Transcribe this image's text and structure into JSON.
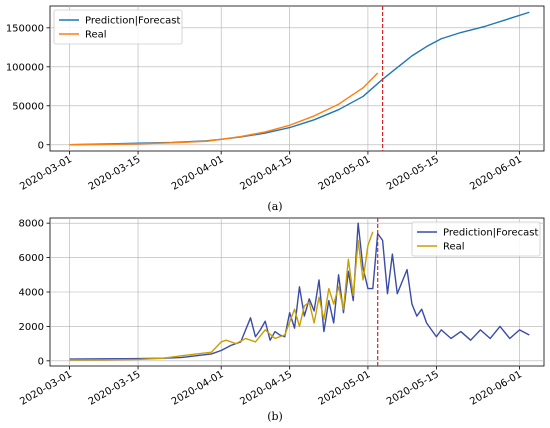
{
  "chart_data": [
    {
      "panel_label": "(a)",
      "type": "line",
      "title": "",
      "xlabel": "",
      "ylabel": "",
      "x_ticks": [
        "2020-03-01",
        "2020-03-15",
        "2020-04-01",
        "2020-04-15",
        "2020-05-01",
        "2020-05-15",
        "2020-06-01"
      ],
      "y_ticks": [
        "0",
        "50000",
        "100000",
        "150000"
      ],
      "ylim": [
        -8000,
        178000
      ],
      "xlim": [
        "2020-02-26",
        "2020-06-06"
      ],
      "grid": true,
      "legend": "top-left",
      "vline": {
        "x": "2020-05-04",
        "color": "#d62728"
      },
      "series": [
        {
          "name": "Prediction|Forecast",
          "color": "#1f77b4",
          "x": [
            "2020-03-01",
            "2020-03-08",
            "2020-03-15",
            "2020-03-22",
            "2020-03-29",
            "2020-04-01",
            "2020-04-05",
            "2020-04-10",
            "2020-04-15",
            "2020-04-20",
            "2020-04-25",
            "2020-04-30",
            "2020-05-04",
            "2020-05-06",
            "2020-05-08",
            "2020-05-10",
            "2020-05-13",
            "2020-05-16",
            "2020-05-20",
            "2020-05-25",
            "2020-05-30",
            "2020-06-03"
          ],
          "values": [
            0,
            1000,
            2000,
            3000,
            5000,
            7000,
            10000,
            15000,
            22000,
            32000,
            45000,
            62000,
            84000,
            94000,
            104000,
            114000,
            126000,
            136000,
            144000,
            152000,
            162000,
            170000
          ]
        },
        {
          "name": "Real",
          "color": "#ff7f0e",
          "x": [
            "2020-03-01",
            "2020-03-08",
            "2020-03-15",
            "2020-03-22",
            "2020-03-29",
            "2020-04-01",
            "2020-04-05",
            "2020-04-10",
            "2020-04-15",
            "2020-04-20",
            "2020-04-25",
            "2020-04-30",
            "2020-05-03"
          ],
          "values": [
            0,
            500,
            1200,
            2500,
            4500,
            7000,
            10500,
            16500,
            25000,
            37000,
            52000,
            73000,
            92000
          ]
        }
      ]
    },
    {
      "panel_label": "(b)",
      "type": "line",
      "title": "",
      "xlabel": "",
      "ylabel": "",
      "x_ticks": [
        "2020-03-01",
        "2020-03-15",
        "2020-04-01",
        "2020-04-15",
        "2020-05-01",
        "2020-05-15",
        "2020-06-01"
      ],
      "y_ticks": [
        "0",
        "2000",
        "4000",
        "6000",
        "8000"
      ],
      "ylim": [
        -300,
        8300
      ],
      "xlim": [
        "2020-02-26",
        "2020-06-06"
      ],
      "grid": true,
      "legend": "top-right",
      "vline": {
        "x": "2020-05-03",
        "color": "#d62728"
      },
      "series": [
        {
          "name": "Prediction|Forecast",
          "color": "#3b4ba8",
          "x": [
            "2020-03-01",
            "2020-03-08",
            "2020-03-15",
            "2020-03-20",
            "2020-03-24",
            "2020-03-27",
            "2020-03-30",
            "2020-04-01",
            "2020-04-03",
            "2020-04-05",
            "2020-04-07",
            "2020-04-08",
            "2020-04-09",
            "2020-04-10",
            "2020-04-11",
            "2020-04-12",
            "2020-04-13",
            "2020-04-14",
            "2020-04-15",
            "2020-04-16",
            "2020-04-17",
            "2020-04-18",
            "2020-04-19",
            "2020-04-20",
            "2020-04-21",
            "2020-04-22",
            "2020-04-23",
            "2020-04-24",
            "2020-04-25",
            "2020-04-26",
            "2020-04-27",
            "2020-04-28",
            "2020-04-29",
            "2020-04-30",
            "2020-05-01",
            "2020-05-02",
            "2020-05-03",
            "2020-05-04",
            "2020-05-05",
            "2020-05-06",
            "2020-05-07",
            "2020-05-08",
            "2020-05-09",
            "2020-05-10",
            "2020-05-11",
            "2020-05-12",
            "2020-05-13",
            "2020-05-14",
            "2020-05-15",
            "2020-05-16",
            "2020-05-18",
            "2020-05-20",
            "2020-05-22",
            "2020-05-24",
            "2020-05-26",
            "2020-05-28",
            "2020-05-30",
            "2020-06-01",
            "2020-06-03"
          ],
          "values": [
            100,
            120,
            130,
            150,
            200,
            300,
            400,
            600,
            900,
            1100,
            2500,
            1400,
            1800,
            2300,
            1200,
            1700,
            1500,
            1400,
            2800,
            1900,
            4300,
            2600,
            3600,
            2900,
            4700,
            1700,
            3500,
            2200,
            5000,
            2800,
            5200,
            3500,
            8000,
            5400,
            4200,
            4200,
            7400,
            7000,
            3900,
            6200,
            3900,
            4600,
            5300,
            3300,
            2600,
            3000,
            2200,
            1800,
            1400,
            1800,
            1300,
            1700,
            1200,
            1800,
            1300,
            2000,
            1300,
            1800,
            1500
          ]
        },
        {
          "name": "Real",
          "color": "#c8a000",
          "x": [
            "2020-03-01",
            "2020-03-08",
            "2020-03-15",
            "2020-03-20",
            "2020-03-24",
            "2020-03-27",
            "2020-03-30",
            "2020-04-01",
            "2020-04-02",
            "2020-04-04",
            "2020-04-06",
            "2020-04-08",
            "2020-04-10",
            "2020-04-12",
            "2020-04-14",
            "2020-04-16",
            "2020-04-17",
            "2020-04-18",
            "2020-04-19",
            "2020-04-20",
            "2020-04-21",
            "2020-04-22",
            "2020-04-23",
            "2020-04-24",
            "2020-04-25",
            "2020-04-26",
            "2020-04-27",
            "2020-04-28",
            "2020-04-29",
            "2020-04-30",
            "2020-05-01",
            "2020-05-02"
          ],
          "values": [
            50,
            60,
            80,
            150,
            300,
            400,
            500,
            1100,
            1200,
            1000,
            1300,
            1100,
            1800,
            1300,
            1500,
            3000,
            2000,
            3200,
            3400,
            2200,
            3700,
            2400,
            4200,
            3300,
            4300,
            3000,
            5900,
            3800,
            7000,
            4700,
            6700,
            7500
          ]
        }
      ]
    }
  ]
}
